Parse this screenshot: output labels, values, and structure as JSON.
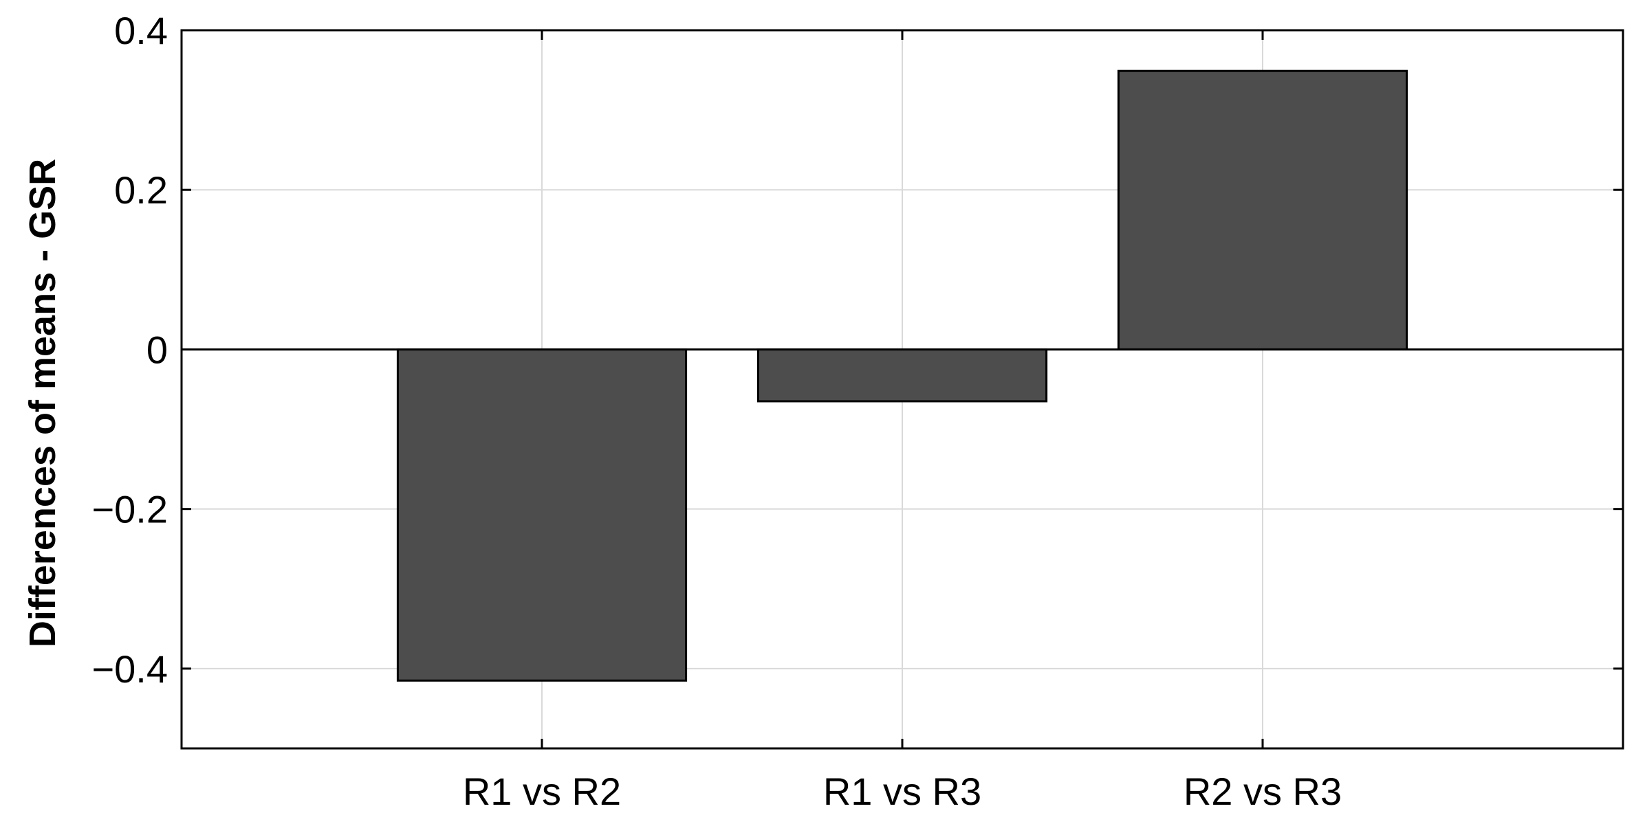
{
  "chart_data": {
    "type": "bar",
    "categories": [
      "R1 vs R2",
      "R1 vs R3",
      "R2 vs R3"
    ],
    "values": [
      -0.415,
      -0.065,
      0.349
    ],
    "ylabel": "Differences of means - GSR",
    "xlabel": "",
    "ylim": [
      -0.5,
      0.4
    ],
    "xlim": [
      0,
      4
    ],
    "yticks": [
      -0.4,
      -0.2,
      0,
      0.2,
      0.4
    ],
    "ytick_labels": [
      "−0.4",
      "−0.2",
      "0",
      "0.2",
      "0.4"
    ],
    "grid": true,
    "legend": "none",
    "bar_color": "#4d4d4d",
    "bar_edge_color": "#000000",
    "grid_color": "#d9d9d9"
  }
}
